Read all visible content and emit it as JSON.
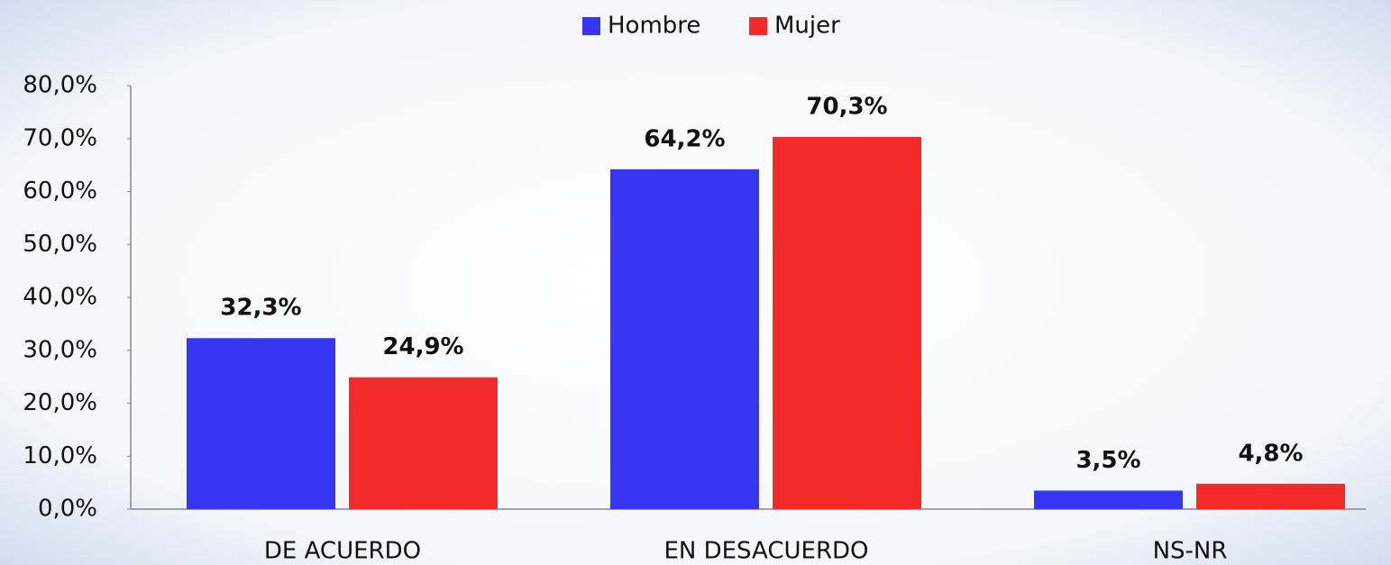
{
  "chart_data": {
    "type": "bar",
    "categories": [
      "DE ACUERDO",
      "EN DESACUERDO",
      "NS-NR"
    ],
    "series": [
      {
        "name": "Hombre",
        "color": "#3535f2",
        "values": [
          32.3,
          64.2,
          3.5
        ],
        "value_labels": [
          "32,3%",
          "64,2%",
          "3,5%"
        ]
      },
      {
        "name": "Mujer",
        "color": "#f42a2a",
        "values": [
          24.9,
          70.3,
          4.8
        ],
        "value_labels": [
          "24,9%",
          "70,3%",
          "4,8%"
        ]
      }
    ],
    "ylim": [
      0,
      80
    ],
    "yticks": [
      {
        "value": 0,
        "label": "0,0%"
      },
      {
        "value": 10,
        "label": "10,0%"
      },
      {
        "value": 20,
        "label": "20,0%"
      },
      {
        "value": 30,
        "label": "30,0%"
      },
      {
        "value": 40,
        "label": "40,0%"
      },
      {
        "value": 50,
        "label": "50,0%"
      },
      {
        "value": 60,
        "label": "60,0%"
      },
      {
        "value": 70,
        "label": "70,0%"
      },
      {
        "value": 80,
        "label": "80,0%"
      }
    ],
    "legend": "top"
  }
}
